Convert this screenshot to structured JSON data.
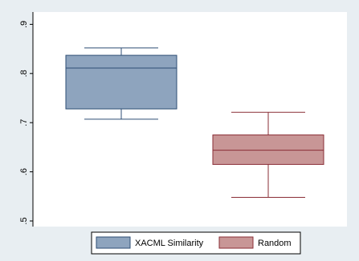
{
  "colors": {
    "outer_background": "#E8EEF2",
    "plot_background": "#FFFFFF",
    "box1_fill": "#8EA4BE",
    "box1_stroke": "#2E4E74",
    "box2_fill": "#C89696",
    "box2_stroke": "#8A2E36",
    "axis": "#000000",
    "legend_border": "#000000"
  },
  "chart_data": {
    "type": "box",
    "y_ticks": [
      0.5,
      0.6,
      0.7,
      0.8,
      0.9
    ],
    "y_tick_labels": [
      ".5",
      ".6",
      ".7",
      ".8",
      ".9"
    ],
    "ylim": [
      0.5,
      0.9
    ],
    "grid": false,
    "legend_position": "bottom",
    "series": [
      {
        "name": "XACML Similarity",
        "min": 0.707,
        "q1": 0.728,
        "median": 0.811,
        "q3": 0.837,
        "max": 0.852
      },
      {
        "name": "Random",
        "min": 0.548,
        "q1": 0.615,
        "median": 0.644,
        "q3": 0.675,
        "max": 0.721
      }
    ]
  }
}
